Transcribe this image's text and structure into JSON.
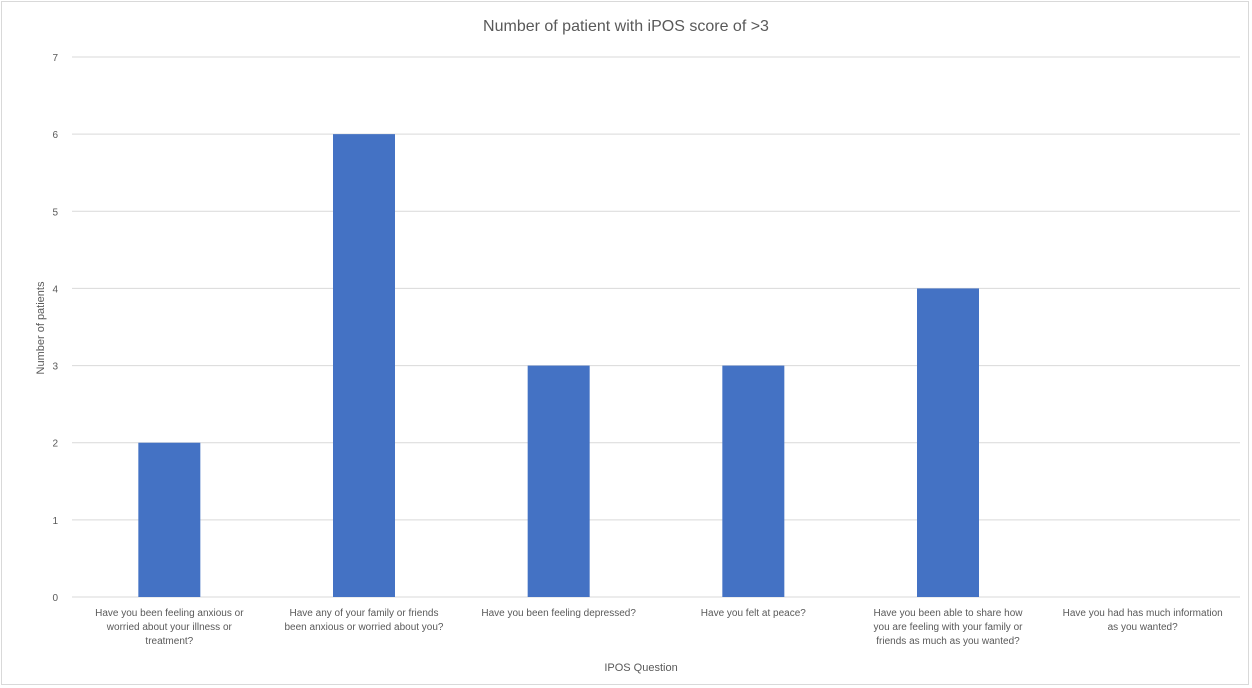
{
  "chart_data": {
    "type": "bar",
    "title": "Number of patient with iPOS score of >3",
    "xlabel": "IPOS Question",
    "ylabel": "Number of patients",
    "ylim": [
      0,
      7
    ],
    "yticks": [
      0,
      1,
      2,
      3,
      4,
      5,
      6,
      7
    ],
    "grid": true,
    "legend": "none",
    "bar_color": "#4472C4",
    "categories": [
      [
        "Have you been feeling anxious or",
        "worried about your illness or",
        "treatment?"
      ],
      [
        "Have any of your family or friends",
        "been anxious or worried about you?"
      ],
      [
        "Have you been feeling depressed?"
      ],
      [
        "Have you felt at peace?"
      ],
      [
        "Have you been able to share how",
        "you are feeling with your family or",
        "friends as much as you wanted?"
      ],
      [
        "Have you had has much information",
        "as you wanted?"
      ]
    ],
    "values": [
      2,
      6,
      3,
      3,
      4,
      0
    ]
  }
}
